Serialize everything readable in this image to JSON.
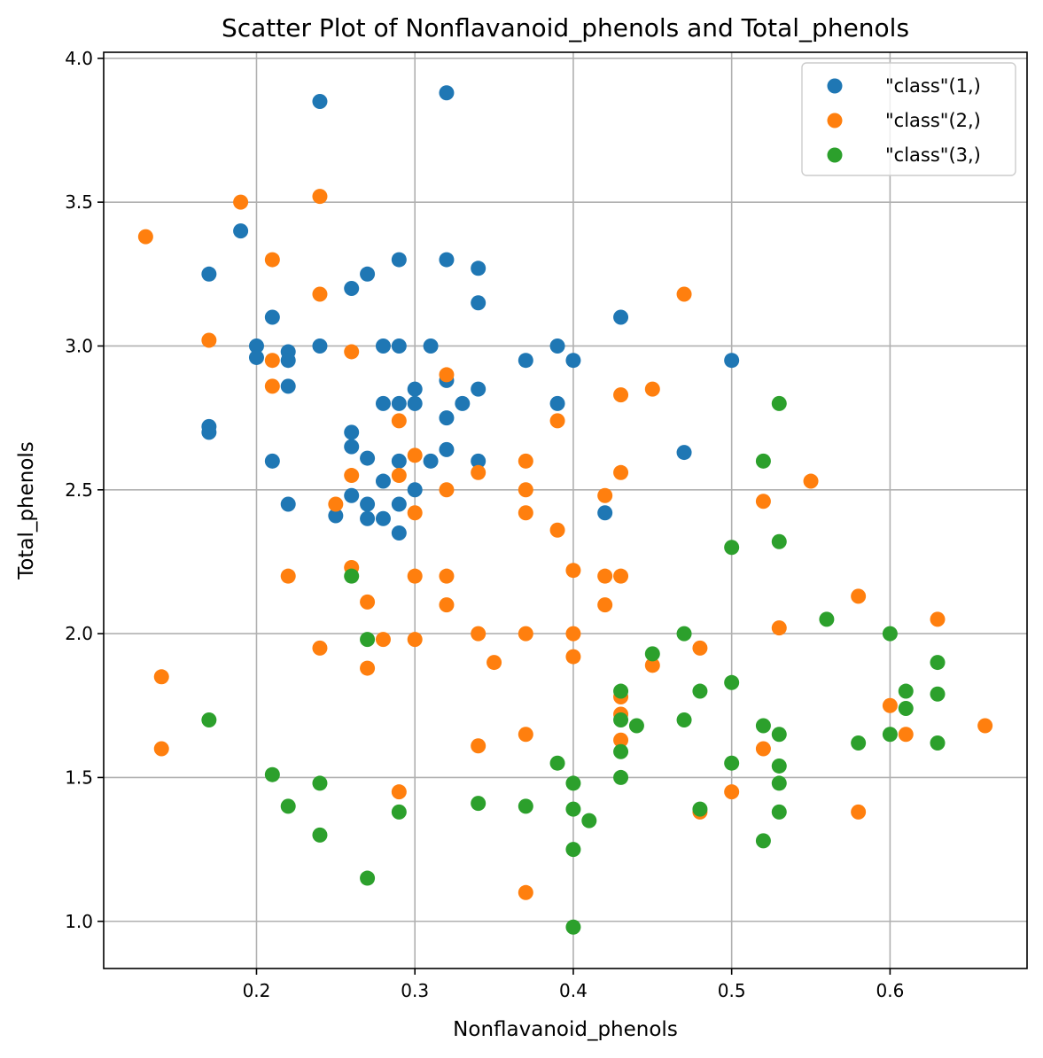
{
  "chart_data": {
    "type": "scatter",
    "title": "Scatter Plot of Nonflavanoid_phenols and Total_phenols",
    "xlabel": "Nonflavanoid_phenols",
    "ylabel": "Total_phenols",
    "xlim": [
      0.1035,
      0.6865
    ],
    "ylim": [
      0.836,
      4.021
    ],
    "xticks": [
      0.2,
      0.3,
      0.4,
      0.5,
      0.6
    ],
    "xtick_labels": [
      "0.2",
      "0.3",
      "0.4",
      "0.5",
      "0.6"
    ],
    "yticks": [
      1.0,
      1.5,
      2.0,
      2.5,
      3.0,
      3.5,
      4.0
    ],
    "ytick_labels": [
      "1.0",
      "1.5",
      "2.0",
      "2.5",
      "3.0",
      "3.5",
      "4.0"
    ],
    "grid": true,
    "legend_position": "top-right",
    "series": [
      {
        "name": "\"class\"(1,)",
        "color": "#1f77b4",
        "points": [
          [
            0.24,
            3.85
          ],
          [
            0.32,
            3.88
          ],
          [
            0.19,
            3.4
          ],
          [
            0.17,
            3.25
          ],
          [
            0.34,
            3.27
          ],
          [
            0.29,
            3.3
          ],
          [
            0.32,
            3.3
          ],
          [
            0.27,
            3.25
          ],
          [
            0.26,
            3.2
          ],
          [
            0.34,
            3.15
          ],
          [
            0.21,
            3.1
          ],
          [
            0.43,
            3.1
          ],
          [
            0.2,
            3.0
          ],
          [
            0.2,
            2.96
          ],
          [
            0.22,
            2.98
          ],
          [
            0.22,
            2.95
          ],
          [
            0.24,
            3.0
          ],
          [
            0.28,
            3.0
          ],
          [
            0.29,
            3.0
          ],
          [
            0.31,
            3.0
          ],
          [
            0.39,
            3.0
          ],
          [
            0.37,
            2.95
          ],
          [
            0.4,
            2.95
          ],
          [
            0.5,
            2.95
          ],
          [
            0.22,
            2.86
          ],
          [
            0.32,
            2.88
          ],
          [
            0.3,
            2.85
          ],
          [
            0.34,
            2.85
          ],
          [
            0.28,
            2.8
          ],
          [
            0.29,
            2.8
          ],
          [
            0.3,
            2.8
          ],
          [
            0.33,
            2.8
          ],
          [
            0.39,
            2.8
          ],
          [
            0.32,
            2.75
          ],
          [
            0.17,
            2.72
          ],
          [
            0.17,
            2.7
          ],
          [
            0.26,
            2.7
          ],
          [
            0.26,
            2.65
          ],
          [
            0.32,
            2.64
          ],
          [
            0.27,
            2.61
          ],
          [
            0.21,
            2.6
          ],
          [
            0.29,
            2.6
          ],
          [
            0.31,
            2.6
          ],
          [
            0.34,
            2.6
          ],
          [
            0.47,
            2.63
          ],
          [
            0.28,
            2.53
          ],
          [
            0.3,
            2.5
          ],
          [
            0.26,
            2.48
          ],
          [
            0.22,
            2.45
          ],
          [
            0.27,
            2.45
          ],
          [
            0.29,
            2.45
          ],
          [
            0.42,
            2.42
          ],
          [
            0.25,
            2.41
          ],
          [
            0.27,
            2.4
          ],
          [
            0.28,
            2.4
          ],
          [
            0.29,
            2.35
          ]
        ]
      },
      {
        "name": "\"class\"(2,)",
        "color": "#ff7f0e",
        "points": [
          [
            0.13,
            3.38
          ],
          [
            0.19,
            3.5
          ],
          [
            0.24,
            3.52
          ],
          [
            0.21,
            3.3
          ],
          [
            0.24,
            3.18
          ],
          [
            0.47,
            3.18
          ],
          [
            0.17,
            3.02
          ],
          [
            0.26,
            2.98
          ],
          [
            0.21,
            2.95
          ],
          [
            0.21,
            2.86
          ],
          [
            0.32,
            2.9
          ],
          [
            0.43,
            2.83
          ],
          [
            0.45,
            2.85
          ],
          [
            0.29,
            2.74
          ],
          [
            0.39,
            2.74
          ],
          [
            0.37,
            2.6
          ],
          [
            0.3,
            2.62
          ],
          [
            0.34,
            2.56
          ],
          [
            0.43,
            2.56
          ],
          [
            0.26,
            2.55
          ],
          [
            0.29,
            2.55
          ],
          [
            0.32,
            2.5
          ],
          [
            0.37,
            2.5
          ],
          [
            0.55,
            2.53
          ],
          [
            0.42,
            2.48
          ],
          [
            0.52,
            2.46
          ],
          [
            0.25,
            2.45
          ],
          [
            0.3,
            2.42
          ],
          [
            0.37,
            2.42
          ],
          [
            0.39,
            2.36
          ],
          [
            0.26,
            2.23
          ],
          [
            0.4,
            2.22
          ],
          [
            0.22,
            2.2
          ],
          [
            0.3,
            2.2
          ],
          [
            0.32,
            2.2
          ],
          [
            0.42,
            2.2
          ],
          [
            0.43,
            2.2
          ],
          [
            0.58,
            2.13
          ],
          [
            0.27,
            2.11
          ],
          [
            0.32,
            2.1
          ],
          [
            0.42,
            2.1
          ],
          [
            0.63,
            2.05
          ],
          [
            0.53,
            2.02
          ],
          [
            0.34,
            2.0
          ],
          [
            0.37,
            2.0
          ],
          [
            0.4,
            2.0
          ],
          [
            0.28,
            1.98
          ],
          [
            0.3,
            1.98
          ],
          [
            0.24,
            1.95
          ],
          [
            0.48,
            1.95
          ],
          [
            0.4,
            1.92
          ],
          [
            0.35,
            1.9
          ],
          [
            0.45,
            1.89
          ],
          [
            0.27,
            1.88
          ],
          [
            0.14,
            1.85
          ],
          [
            0.43,
            1.78
          ],
          [
            0.6,
            1.75
          ],
          [
            0.43,
            1.72
          ],
          [
            0.66,
            1.68
          ],
          [
            0.37,
            1.65
          ],
          [
            0.61,
            1.65
          ],
          [
            0.43,
            1.63
          ],
          [
            0.34,
            1.61
          ],
          [
            0.14,
            1.6
          ],
          [
            0.52,
            1.6
          ],
          [
            0.29,
            1.45
          ],
          [
            0.5,
            1.45
          ],
          [
            0.48,
            1.38
          ],
          [
            0.58,
            1.38
          ],
          [
            0.37,
            1.1
          ]
        ]
      },
      {
        "name": "\"class\"(3,)",
        "color": "#2ca02c",
        "points": [
          [
            0.53,
            2.8
          ],
          [
            0.52,
            2.6
          ],
          [
            0.53,
            2.32
          ],
          [
            0.5,
            2.3
          ],
          [
            0.26,
            2.2
          ],
          [
            0.56,
            2.05
          ],
          [
            0.47,
            2.0
          ],
          [
            0.6,
            2.0
          ],
          [
            0.27,
            1.98
          ],
          [
            0.45,
            1.93
          ],
          [
            0.63,
            1.9
          ],
          [
            0.5,
            1.83
          ],
          [
            0.43,
            1.8
          ],
          [
            0.48,
            1.8
          ],
          [
            0.61,
            1.8
          ],
          [
            0.63,
            1.79
          ],
          [
            0.61,
            1.74
          ],
          [
            0.17,
            1.7
          ],
          [
            0.43,
            1.7
          ],
          [
            0.47,
            1.7
          ],
          [
            0.44,
            1.68
          ],
          [
            0.52,
            1.68
          ],
          [
            0.53,
            1.65
          ],
          [
            0.6,
            1.65
          ],
          [
            0.58,
            1.62
          ],
          [
            0.63,
            1.62
          ],
          [
            0.43,
            1.59
          ],
          [
            0.39,
            1.55
          ],
          [
            0.5,
            1.55
          ],
          [
            0.53,
            1.54
          ],
          [
            0.21,
            1.51
          ],
          [
            0.43,
            1.5
          ],
          [
            0.24,
            1.48
          ],
          [
            0.4,
            1.48
          ],
          [
            0.53,
            1.48
          ],
          [
            0.34,
            1.41
          ],
          [
            0.22,
            1.4
          ],
          [
            0.37,
            1.4
          ],
          [
            0.4,
            1.39
          ],
          [
            0.48,
            1.39
          ],
          [
            0.29,
            1.38
          ],
          [
            0.53,
            1.38
          ],
          [
            0.41,
            1.35
          ],
          [
            0.24,
            1.3
          ],
          [
            0.52,
            1.28
          ],
          [
            0.4,
            1.25
          ],
          [
            0.27,
            1.15
          ],
          [
            0.4,
            0.98
          ]
        ]
      }
    ]
  }
}
